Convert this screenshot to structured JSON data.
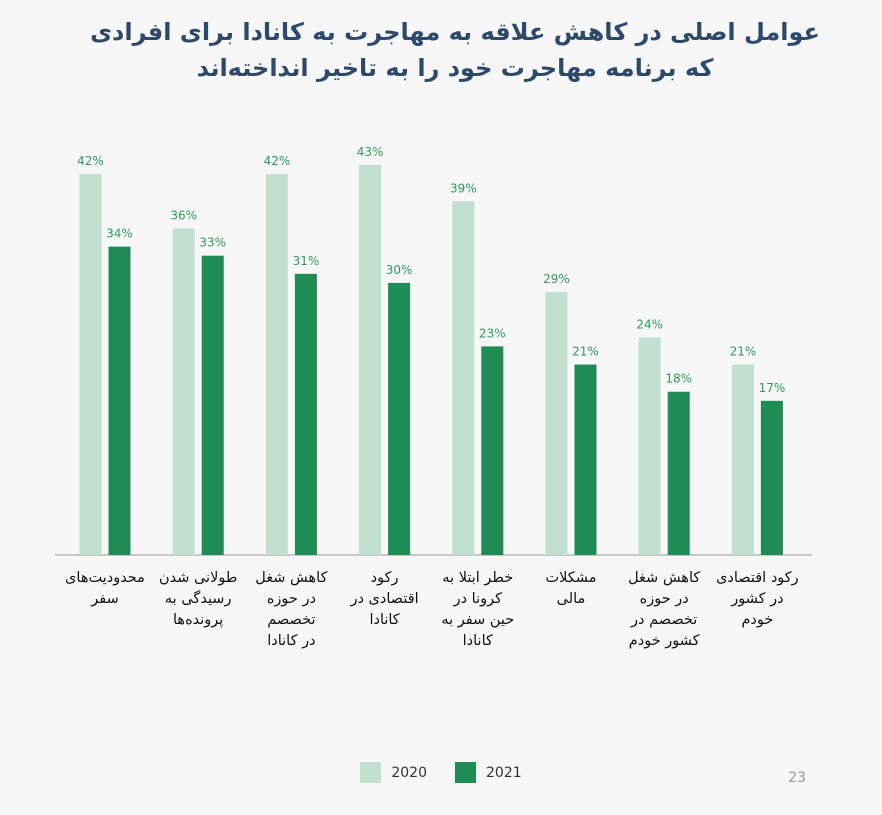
{
  "page_number": "23",
  "chart_data": {
    "type": "bar",
    "title_lines": [
      "عوامل اصلی در کاهش علاقه به مهاجرت به کانادا برای افرادی",
      "که برنامه مهاجرت خود را به تاخیر انداخته‌اند"
    ],
    "categories": [
      [
        "محدودیت‌های",
        "سفر"
      ],
      [
        "طولانی شدن",
        "رسیدگی به",
        "پرونده‌ها"
      ],
      [
        "کاهش شغل",
        "در حوزه",
        "تخصصم",
        "در کانادا"
      ],
      [
        "رکود",
        "اقتصادی در",
        "کانادا"
      ],
      [
        "خطر ابتلا به",
        "کرونا در",
        "حین سفر به",
        "کانادا"
      ],
      [
        "مشکلات",
        "مالی"
      ],
      [
        "کاهش شغل",
        "در حوزه",
        "تخصصم در",
        "کشور خودم"
      ],
      [
        "رکود اقتصادی",
        "در کشور",
        "خودم"
      ]
    ],
    "series": [
      {
        "name": "2020",
        "color": "#c1e0d0",
        "values": [
          42,
          36,
          42,
          43,
          39,
          29,
          24,
          21
        ],
        "labels": [
          "42%",
          "36%",
          "42%",
          "43%",
          "39%",
          "29%",
          "24%",
          "21%"
        ]
      },
      {
        "name": "2021",
        "color": "#1e8c54",
        "values": [
          34,
          33,
          31,
          30,
          23,
          21,
          18,
          17
        ],
        "labels": [
          "34%",
          "33%",
          "31%",
          "30%",
          "23%",
          "21%",
          "18%",
          "17%"
        ]
      }
    ],
    "ylim": [
      0,
      45
    ],
    "label_color": "#2e9a5e",
    "grid": false,
    "legend_position": "bottom"
  }
}
